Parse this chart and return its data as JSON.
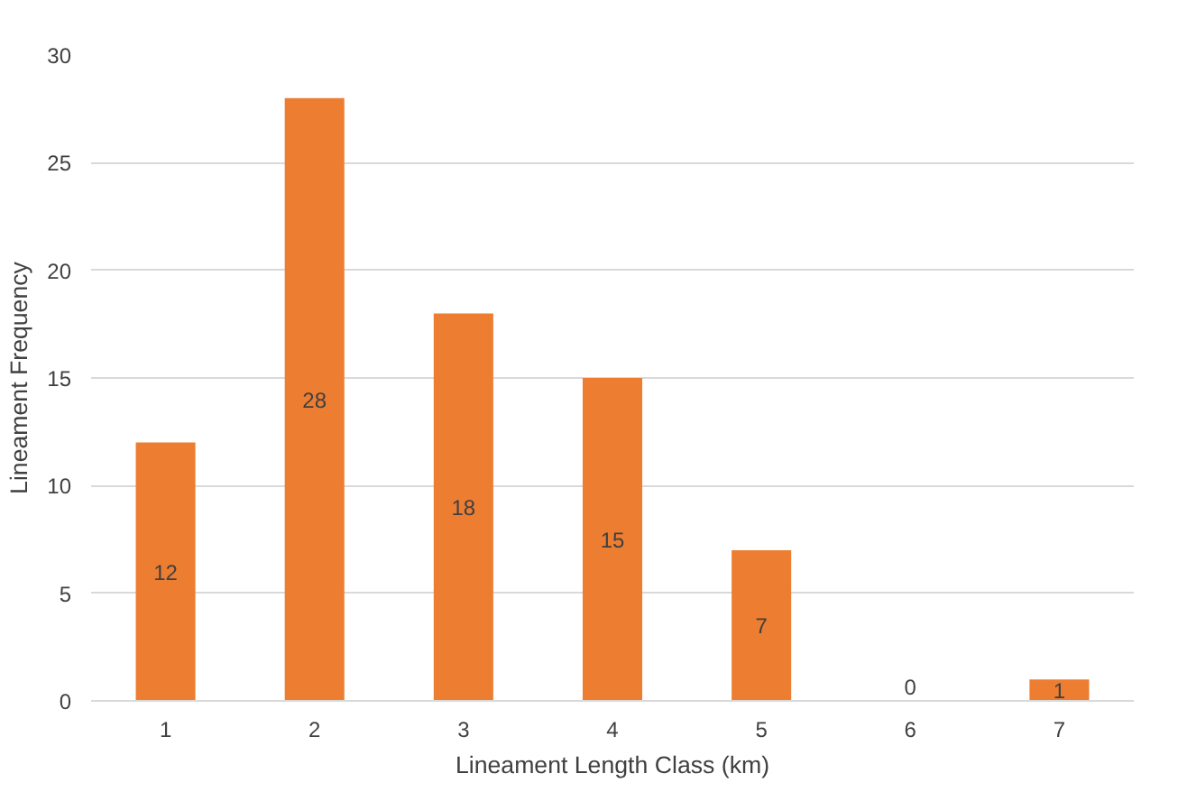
{
  "chart_data": {
    "type": "bar",
    "xlabel": "Lineament Length Class (km)",
    "ylabel": "Lineament Frequency",
    "categories": [
      "1",
      "2",
      "3",
      "4",
      "5",
      "6",
      "7"
    ],
    "values": [
      12,
      28,
      18,
      15,
      7,
      0,
      1
    ],
    "color": "#ed7d31",
    "ylim": [
      0,
      30
    ],
    "yticks": [
      0,
      5,
      10,
      15,
      20,
      25,
      30
    ],
    "grid": "y",
    "data_labels": true
  }
}
